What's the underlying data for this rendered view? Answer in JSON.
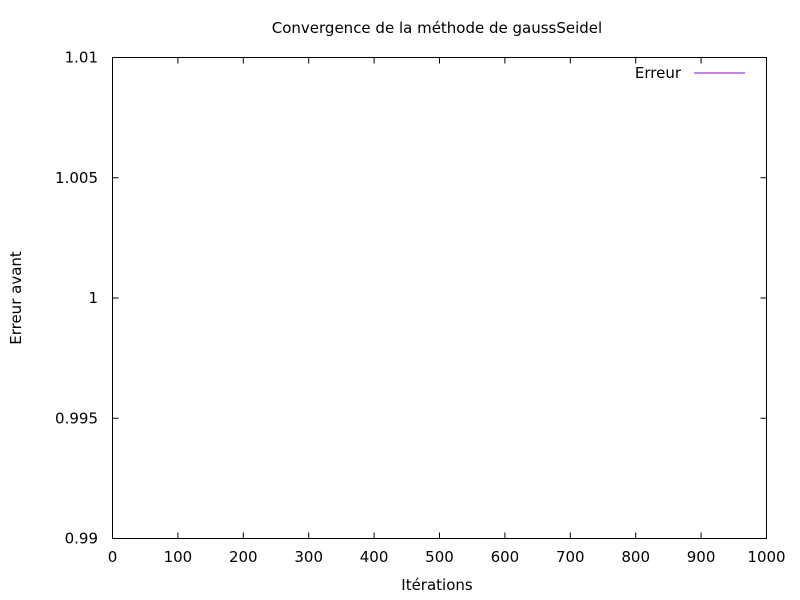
{
  "chart_data": {
    "type": "line",
    "title": "Convergence de la méthode de gaussSeidel",
    "xlabel": "Itérations",
    "ylabel": "Erreur avant",
    "xlim": [
      0,
      1000
    ],
    "ylim": [
      0.99,
      1.01
    ],
    "x_ticks": [
      {
        "value": 0,
        "label": "0"
      },
      {
        "value": 100,
        "label": "100"
      },
      {
        "value": 200,
        "label": "200"
      },
      {
        "value": 300,
        "label": "300"
      },
      {
        "value": 400,
        "label": "400"
      },
      {
        "value": 500,
        "label": "500"
      },
      {
        "value": 600,
        "label": "600"
      },
      {
        "value": 700,
        "label": "700"
      },
      {
        "value": 800,
        "label": "800"
      },
      {
        "value": 900,
        "label": "900"
      },
      {
        "value": 1000,
        "label": "1000"
      }
    ],
    "y_ticks": [
      {
        "value": 0.99,
        "label": "0.99"
      },
      {
        "value": 0.995,
        "label": "0.995"
      },
      {
        "value": 1.0,
        "label": "1"
      },
      {
        "value": 1.005,
        "label": "1.005"
      },
      {
        "value": 1.01,
        "label": "1.01"
      }
    ],
    "grid": false,
    "legend_position": "top-right",
    "series": [
      {
        "name": "Erreur",
        "color": "#9400d3",
        "x": [],
        "y": []
      }
    ]
  }
}
